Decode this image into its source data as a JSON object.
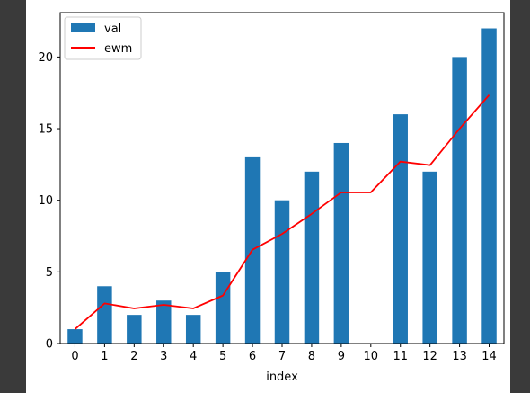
{
  "chart_data": {
    "type": "bar",
    "xlabel": "index",
    "ylabel": "",
    "categories": [
      "0",
      "1",
      "2",
      "3",
      "4",
      "5",
      "6",
      "7",
      "8",
      "9",
      "10",
      "11",
      "12",
      "13",
      "14"
    ],
    "series": [
      {
        "name": "val",
        "type": "bar",
        "color": "#1f77b4",
        "values": [
          1,
          4,
          2,
          3,
          2,
          5,
          13,
          10,
          12,
          14,
          0,
          16,
          12,
          20,
          22
        ]
      },
      {
        "name": "ewm",
        "type": "line",
        "color": "#ff0000",
        "values": [
          1.0,
          2.8,
          2.45,
          2.7,
          2.45,
          3.35,
          6.55,
          7.65,
          9.05,
          10.55,
          10.55,
          12.7,
          12.45,
          15.0,
          17.35
        ]
      }
    ],
    "ylim": [
      0,
      23.1
    ],
    "yticks": [
      0,
      5,
      10,
      15,
      20
    ],
    "grid": false,
    "legend_position": "top-left"
  }
}
